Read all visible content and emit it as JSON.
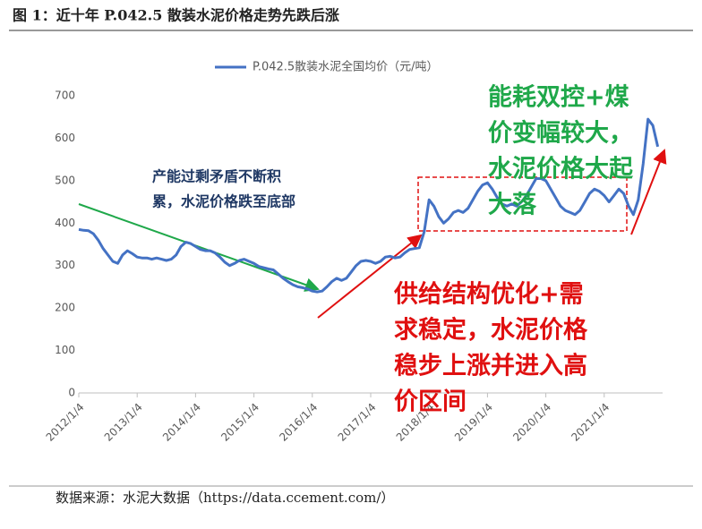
{
  "chart_data": {
    "type": "line",
    "title": "图 1：近十年 P.042.5 散装水泥价格走势先跌后涨",
    "source": "数据来源：水泥大数据（https://data.ccement.com/）",
    "categories": [
      "2012/1/4",
      null,
      null,
      null,
      null,
      null,
      null,
      null,
      null,
      null,
      null,
      null,
      "2013/1/4",
      null,
      null,
      null,
      null,
      null,
      null,
      null,
      null,
      null,
      null,
      null,
      "2014/1/4",
      null,
      null,
      null,
      null,
      null,
      null,
      null,
      null,
      null,
      null,
      null,
      "2015/1/4",
      null,
      null,
      null,
      null,
      null,
      null,
      null,
      null,
      null,
      null,
      null,
      "2016/1/4",
      null,
      null,
      null,
      null,
      null,
      null,
      null,
      null,
      null,
      null,
      null,
      "2017/1/4",
      null,
      null,
      null,
      null,
      null,
      null,
      null,
      null,
      null,
      null,
      null,
      "2018/1/4",
      null,
      null,
      null,
      null,
      null,
      null,
      null,
      null,
      null,
      null,
      null,
      "2019/1/4",
      null,
      null,
      null,
      null,
      null,
      null,
      null,
      null,
      null,
      null,
      null,
      "2020/1/4",
      null,
      null,
      null,
      null,
      null,
      null,
      null,
      null,
      null,
      null,
      null,
      "2021/1/4",
      null,
      null,
      null,
      null,
      null,
      null,
      null,
      null,
      null,
      null,
      null
    ],
    "series": [
      {
        "name": "P.042.5散装水泥全国均价（元/吨）",
        "color": "#4472c4",
        "values": [
          385,
          383,
          382,
          375,
          360,
          340,
          325,
          310,
          305,
          325,
          335,
          328,
          320,
          318,
          318,
          315,
          318,
          315,
          312,
          315,
          325,
          345,
          355,
          352,
          345,
          338,
          335,
          335,
          330,
          320,
          308,
          300,
          305,
          312,
          315,
          310,
          305,
          298,
          295,
          292,
          290,
          280,
          270,
          262,
          255,
          250,
          248,
          245,
          240,
          238,
          240,
          250,
          262,
          270,
          265,
          270,
          285,
          300,
          310,
          312,
          310,
          305,
          310,
          320,
          322,
          318,
          320,
          330,
          338,
          340,
          342,
          380,
          455,
          440,
          415,
          400,
          410,
          425,
          430,
          425,
          435,
          455,
          475,
          490,
          495,
          480,
          460,
          445,
          440,
          445,
          440,
          450,
          465,
          485,
          505,
          505,
          500,
          480,
          460,
          440,
          430,
          425,
          420,
          430,
          450,
          470,
          480,
          475,
          465,
          450,
          465,
          480,
          470,
          440,
          420,
          455,
          540,
          645,
          630,
          580
        ]
      }
    ],
    "ylim": [
      0,
      700
    ],
    "yticks": [
      0,
      100,
      200,
      300,
      400,
      500,
      600,
      700
    ],
    "grid": false,
    "legend": "top",
    "annotations": [
      {
        "color": "#1f3864",
        "lines": [
          "产能过剩矛盾不断积",
          "累，水泥价格跌至底部"
        ]
      },
      {
        "color": "#1fa84a",
        "lines": [
          "能耗双控+煤",
          "价变幅较大，",
          "水泥价格大起",
          "大落"
        ]
      },
      {
        "color": "#e01010",
        "lines": [
          "供给结构优化+需",
          "求稳定，水泥价格",
          "稳步上涨并进入高",
          "价区间"
        ]
      }
    ]
  }
}
